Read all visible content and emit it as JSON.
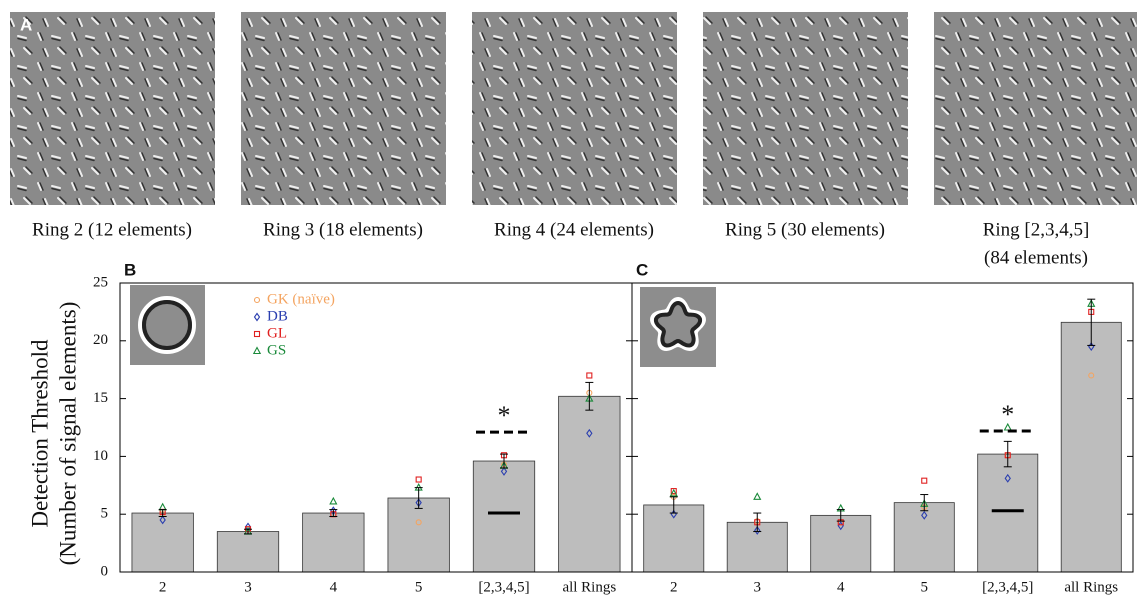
{
  "panel_a": {
    "label": "A",
    "captions": [
      [
        "Ring 2 (12 elements)"
      ],
      [
        "Ring 3 (18 elements)"
      ],
      [
        "Ring 4 (24 elements)"
      ],
      [
        "Ring 5 (30 elements)"
      ],
      [
        "Ring [2,3,4,5]",
        "(84 elements)"
      ]
    ]
  },
  "chart_data": [
    {
      "type": "bar",
      "label": "B",
      "ylabel": [
        "Detection Threshold",
        "(Number of signal elements)"
      ],
      "categories": [
        "2",
        "3",
        "4",
        "5",
        "[2,3,4,5]",
        "all Rings"
      ],
      "values": [
        5.1,
        3.5,
        5.1,
        6.4,
        9.6,
        15.2
      ],
      "errors": [
        0.3,
        0.2,
        0.3,
        0.9,
        0.6,
        1.2
      ],
      "color": "#bdbdbd",
      "ylim": [
        0,
        25
      ],
      "yticks": [
        0,
        5,
        10,
        15,
        20,
        25
      ],
      "series": [
        {
          "name": "GK (naïve)",
          "color": "#f4a460",
          "marker": "circle",
          "values": [
            5.0,
            3.7,
            5.0,
            4.3,
            9.3,
            15.5
          ]
        },
        {
          "name": "DB",
          "color": "#2b3fb0",
          "marker": "diamond",
          "values": [
            4.5,
            3.9,
            5.3,
            6.0,
            8.7,
            12.0
          ]
        },
        {
          "name": "GL",
          "color": "#e02020",
          "marker": "square",
          "values": [
            5.2,
            3.7,
            5.0,
            8.0,
            10.1,
            17.0
          ]
        },
        {
          "name": "GS",
          "color": "#1a8a3a",
          "marker": "triangle",
          "values": [
            5.6,
            3.5,
            6.1,
            7.3,
            9.2,
            15.0
          ]
        }
      ],
      "dashed_line": 12.1,
      "solid_line": 5.1,
      "annotation": "*"
    },
    {
      "type": "bar",
      "label": "C",
      "categories": [
        "2",
        "3",
        "4",
        "5",
        "[2,3,4,5]",
        "all Rings"
      ],
      "values": [
        5.8,
        4.3,
        4.9,
        6.0,
        10.2,
        21.6
      ],
      "errors": [
        0.7,
        0.8,
        0.5,
        0.7,
        1.1,
        2.0
      ],
      "color": "#bdbdbd",
      "ylim": [
        0,
        25
      ],
      "yticks": [
        0,
        5,
        10,
        15,
        20,
        25
      ],
      "series": [
        {
          "color": "#f4a460",
          "marker": "circle",
          "values": [
            6.5,
            4.4,
            4.3,
            5.6,
            10.1,
            17.0
          ]
        },
        {
          "color": "#2b3fb0",
          "marker": "diamond",
          "values": [
            5.0,
            3.6,
            4.0,
            4.9,
            8.1,
            19.5
          ]
        },
        {
          "color": "#e02020",
          "marker": "square",
          "values": [
            7.0,
            4.3,
            4.3,
            7.9,
            10.1,
            22.5
          ]
        },
        {
          "color": "#1a8a3a",
          "marker": "triangle",
          "values": [
            6.8,
            6.5,
            5.5,
            5.9,
            12.5,
            23.2
          ]
        }
      ],
      "dashed_line": 12.2,
      "solid_line": 5.3,
      "annotation": "*"
    }
  ]
}
